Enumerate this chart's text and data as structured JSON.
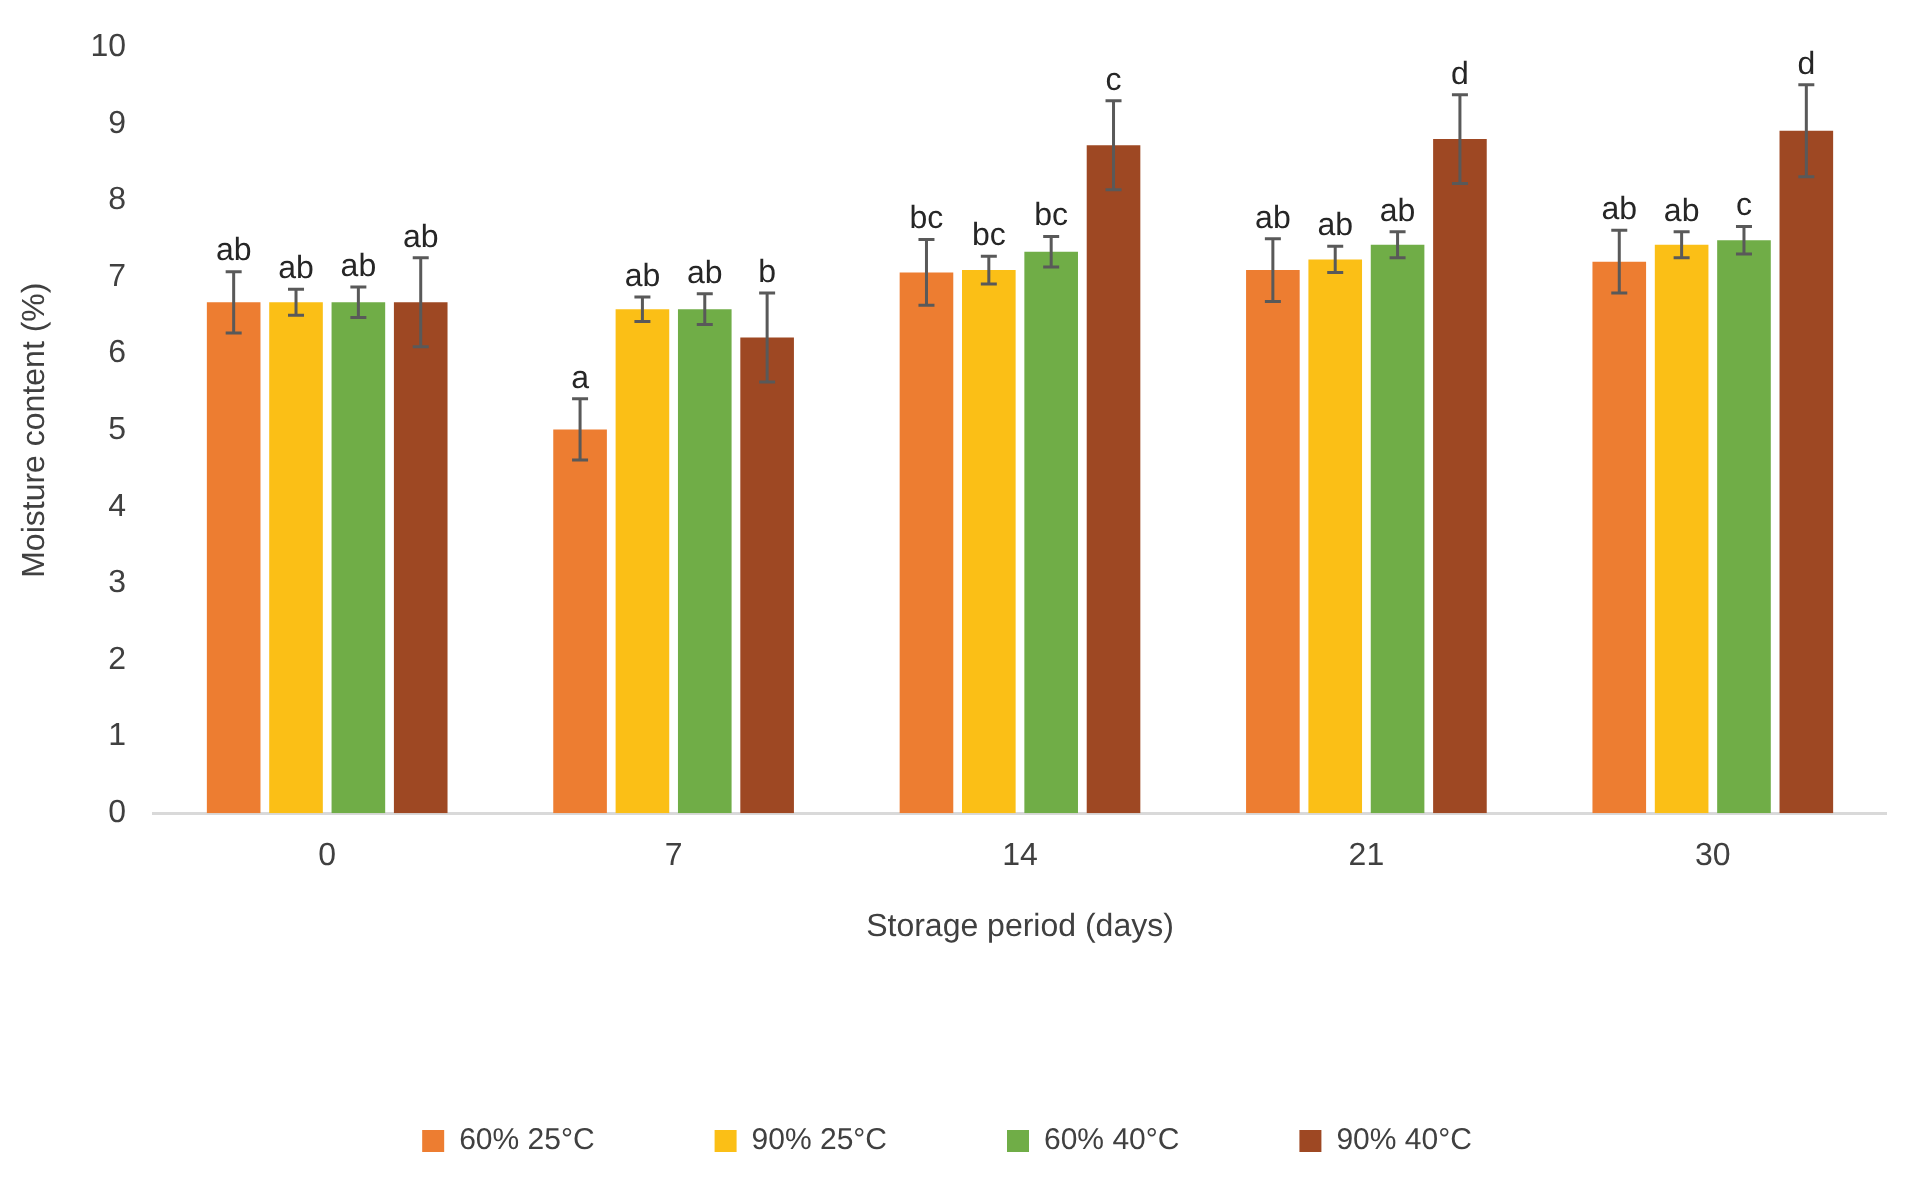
{
  "chart_data": {
    "type": "bar",
    "xlabel": "Storage period (days)",
    "ylabel": "Moisture content (%)",
    "categories": [
      "0",
      "7",
      "14",
      "21",
      "30"
    ],
    "ylim": [
      0,
      10
    ],
    "yticks": [
      0,
      1,
      2,
      3,
      4,
      5,
      6,
      7,
      8,
      9,
      10
    ],
    "grid": false,
    "legend": "bottom",
    "series": [
      {
        "name": "60% 25°C",
        "color": "#ed7d31",
        "values": [
          6.67,
          5.01,
          7.06,
          7.09,
          7.2
        ],
        "errors": [
          0.4,
          0.4,
          0.43,
          0.41,
          0.41
        ],
        "value_labels": [
          "ab",
          "a",
          "bc",
          "ab",
          "ab"
        ]
      },
      {
        "name": "90% 25°C",
        "color": "#fbbf16",
        "values": [
          6.67,
          6.58,
          7.09,
          7.23,
          7.42
        ],
        "errors": [
          0.17,
          0.16,
          0.18,
          0.17,
          0.17
        ],
        "value_labels": [
          "ab",
          "ab",
          "bc",
          "ab",
          "ab"
        ]
      },
      {
        "name": "60% 40°C",
        "color": "#70ad47",
        "values": [
          6.67,
          6.58,
          7.33,
          7.42,
          7.48
        ],
        "errors": [
          0.2,
          0.2,
          0.2,
          0.17,
          0.18
        ],
        "value_labels": [
          "ab",
          "ab",
          "bc",
          "ab",
          "c"
        ]
      },
      {
        "name": "90% 40°C",
        "color": "#9e4823",
        "values": [
          6.67,
          6.21,
          8.72,
          8.8,
          8.91
        ],
        "errors": [
          0.58,
          0.58,
          0.58,
          0.58,
          0.6
        ],
        "value_labels": [
          "ab",
          "b",
          "c",
          "d",
          "d"
        ]
      }
    ]
  }
}
